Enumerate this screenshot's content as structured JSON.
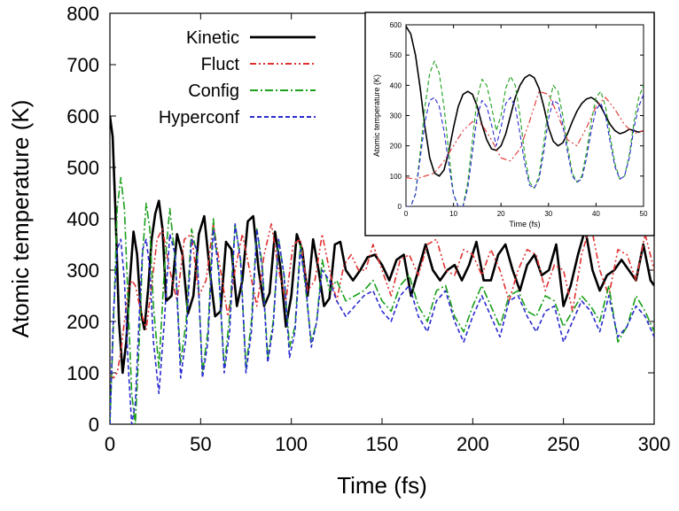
{
  "chart_data": [
    {
      "type": "line",
      "title": "",
      "xlabel": "Time (fs)",
      "ylabel": "Atomic temperature (K)",
      "xlim": [
        0,
        300
      ],
      "ylim": [
        0,
        800
      ],
      "xticks": [
        "0",
        "50",
        "100",
        "150",
        "200",
        "250",
        "300"
      ],
      "yticks": [
        "0",
        "100",
        "200",
        "300",
        "400",
        "500",
        "600",
        "700",
        "800"
      ],
      "grid": false,
      "legend_position": "top-center",
      "series": [
        {
          "name": "Kinetic",
          "color": "#000000",
          "style": "solid",
          "x": [
            0,
            1.5,
            3,
            5,
            7,
            9,
            11,
            13,
            15,
            17,
            19,
            21,
            23,
            25,
            27,
            29,
            31,
            34,
            37,
            40,
            43,
            46,
            49,
            52,
            55,
            58,
            61,
            64,
            67,
            70,
            73,
            76,
            79,
            82,
            85,
            88,
            91,
            94,
            97,
            100,
            103,
            106,
            109,
            112,
            115,
            118,
            121,
            124,
            127,
            130,
            134,
            138,
            142,
            146,
            150,
            154,
            158,
            162,
            166,
            170,
            174,
            178,
            182,
            186,
            190,
            194,
            198,
            202,
            206,
            210,
            214,
            218,
            222,
            226,
            230,
            234,
            238,
            242,
            246,
            250,
            254,
            258,
            262,
            266,
            270,
            274,
            278,
            282,
            286,
            290,
            294,
            298,
            300
          ],
          "y": [
            600,
            560,
            420,
            200,
            100,
            160,
            280,
            375,
            330,
            220,
            185,
            260,
            360,
            410,
            435,
            380,
            240,
            250,
            370,
            330,
            215,
            250,
            370,
            405,
            300,
            210,
            220,
            355,
            340,
            230,
            280,
            395,
            405,
            300,
            230,
            255,
            375,
            305,
            190,
            250,
            370,
            340,
            250,
            360,
            300,
            230,
            245,
            350,
            355,
            300,
            280,
            300,
            325,
            330,
            310,
            280,
            320,
            330,
            250,
            300,
            350,
            300,
            280,
            300,
            310,
            280,
            310,
            355,
            280,
            280,
            330,
            350,
            300,
            260,
            310,
            330,
            290,
            300,
            350,
            230,
            270,
            330,
            380,
            300,
            260,
            290,
            300,
            320,
            300,
            280,
            350,
            280,
            270
          ]
        },
        {
          "name": "Fluct",
          "color": "#e03030",
          "style": "dash-dot-dot",
          "x": [
            0,
            2,
            4,
            6,
            8,
            10,
            12,
            14,
            17,
            20,
            23,
            26,
            29,
            33,
            37,
            41,
            45,
            49,
            53,
            57,
            61,
            65,
            69,
            73,
            77,
            81,
            85,
            89,
            93,
            97,
            101,
            105,
            109,
            113,
            117,
            121,
            125,
            129,
            133,
            137,
            141,
            145,
            150,
            155,
            160,
            165,
            170,
            175,
            180,
            185,
            190,
            195,
            200,
            205,
            210,
            215,
            220,
            225,
            230,
            235,
            240,
            245,
            250,
            255,
            260,
            265,
            270,
            275,
            280,
            285,
            290,
            295,
            300
          ],
          "y": [
            95,
            90,
            100,
            140,
            200,
            260,
            280,
            270,
            220,
            185,
            270,
            360,
            380,
            300,
            240,
            360,
            370,
            250,
            280,
            390,
            300,
            210,
            300,
            370,
            300,
            230,
            330,
            390,
            300,
            240,
            350,
            360,
            260,
            280,
            370,
            300,
            240,
            310,
            330,
            300,
            300,
            350,
            300,
            250,
            320,
            330,
            290,
            350,
            360,
            300,
            290,
            340,
            330,
            290,
            340,
            300,
            240,
            300,
            340,
            330,
            260,
            310,
            300,
            220,
            330,
            390,
            300,
            250,
            340,
            330,
            280,
            370,
            300
          ]
        },
        {
          "name": "Config",
          "color": "#1aa01a",
          "style": "dash-dot",
          "x": [
            0,
            2,
            4,
            6,
            8,
            10,
            12,
            14,
            16,
            18,
            20,
            22,
            24,
            27,
            30,
            33,
            36,
            39,
            42,
            45,
            48,
            51,
            54,
            57,
            60,
            63,
            66,
            69,
            72,
            75,
            78,
            81,
            84,
            87,
            90,
            93,
            96,
            99,
            102,
            105,
            108,
            111,
            114,
            117,
            121,
            125,
            130,
            135,
            140,
            145,
            150,
            155,
            160,
            165,
            170,
            175,
            180,
            185,
            190,
            195,
            200,
            205,
            210,
            215,
            220,
            225,
            230,
            235,
            240,
            245,
            250,
            255,
            260,
            265,
            270,
            275,
            280,
            285,
            290,
            295,
            300
          ],
          "y": [
            0,
            200,
            420,
            480,
            420,
            240,
            60,
            0,
            150,
            330,
            430,
            380,
            230,
            110,
            300,
            420,
            320,
            120,
            200,
            380,
            330,
            100,
            180,
            400,
            290,
            110,
            210,
            390,
            320,
            110,
            200,
            380,
            310,
            130,
            200,
            360,
            290,
            150,
            190,
            350,
            260,
            160,
            200,
            320,
            260,
            280,
            240,
            250,
            260,
            280,
            240,
            220,
            270,
            290,
            230,
            200,
            260,
            270,
            210,
            180,
            230,
            270,
            230,
            190,
            250,
            260,
            220,
            210,
            250,
            240,
            190,
            220,
            250,
            230,
            200,
            270,
            160,
            190,
            250,
            220,
            180
          ]
        },
        {
          "name": "Hyperconf",
          "color": "#2a2ad0",
          "style": "dash",
          "x": [
            0,
            2,
            4,
            6,
            8,
            10,
            12,
            14,
            16,
            18,
            20,
            22,
            24,
            27,
            30,
            33,
            36,
            39,
            42,
            45,
            48,
            51,
            54,
            57,
            60,
            63,
            66,
            69,
            72,
            75,
            78,
            81,
            84,
            87,
            90,
            93,
            96,
            99,
            102,
            105,
            108,
            111,
            114,
            117,
            121,
            125,
            130,
            135,
            140,
            145,
            150,
            155,
            160,
            165,
            170,
            175,
            180,
            185,
            190,
            195,
            200,
            205,
            210,
            215,
            220,
            225,
            230,
            235,
            240,
            245,
            250,
            255,
            260,
            265,
            270,
            275,
            280,
            285,
            290,
            295,
            300
          ],
          "y": [
            0,
            220,
            340,
            360,
            280,
            120,
            0,
            40,
            200,
            340,
            360,
            300,
            160,
            60,
            200,
            370,
            330,
            90,
            170,
            360,
            340,
            90,
            160,
            380,
            300,
            100,
            180,
            390,
            320,
            100,
            180,
            380,
            300,
            120,
            190,
            360,
            290,
            130,
            180,
            340,
            270,
            150,
            200,
            300,
            280,
            240,
            210,
            230,
            250,
            260,
            220,
            200,
            250,
            270,
            210,
            180,
            240,
            260,
            200,
            160,
            210,
            250,
            210,
            170,
            240,
            250,
            210,
            180,
            220,
            230,
            160,
            200,
            240,
            220,
            180,
            250,
            170,
            190,
            230,
            210,
            170
          ]
        }
      ]
    },
    {
      "type": "line",
      "title": "",
      "xlabel": "Time (fs)",
      "ylabel": "Atomic temperature (K)",
      "xlim": [
        0,
        50
      ],
      "ylim": [
        0,
        600
      ],
      "xticks": [
        "0",
        "10",
        "20",
        "30",
        "40",
        "50"
      ],
      "yticks": [
        "0",
        "100",
        "200",
        "300",
        "400",
        "500",
        "600"
      ],
      "grid": false,
      "series": [
        {
          "color": "#000000",
          "style": "solid",
          "x": [
            0,
            1,
            2,
            3,
            4,
            5,
            6,
            7,
            8,
            9,
            10,
            11,
            12,
            13,
            14,
            15,
            16,
            17,
            18,
            19,
            20,
            21,
            22,
            23,
            24,
            25,
            26,
            27,
            28,
            29,
            30,
            31,
            32,
            33,
            34,
            35,
            36,
            37,
            38,
            39,
            40,
            41,
            42,
            43,
            44,
            45,
            46,
            47,
            48,
            49,
            50
          ],
          "y": [
            595,
            570,
            500,
            390,
            260,
            160,
            110,
            100,
            120,
            180,
            260,
            330,
            370,
            380,
            370,
            330,
            270,
            220,
            190,
            185,
            200,
            240,
            300,
            360,
            400,
            425,
            435,
            425,
            390,
            330,
            260,
            215,
            200,
            210,
            240,
            280,
            315,
            340,
            355,
            360,
            350,
            330,
            300,
            270,
            250,
            240,
            245,
            255,
            250,
            245,
            250
          ]
        },
        {
          "color": "#e03030",
          "style": "dash-dot-dot",
          "x": [
            0,
            2,
            4,
            6,
            8,
            10,
            12,
            14,
            16,
            18,
            20,
            22,
            24,
            26,
            28,
            30,
            32,
            34,
            36,
            38,
            40,
            42,
            44,
            46,
            48,
            50
          ],
          "y": [
            95,
            90,
            100,
            110,
            150,
            200,
            250,
            280,
            270,
            220,
            160,
            150,
            190,
            280,
            380,
            370,
            300,
            220,
            200,
            260,
            330,
            360,
            320,
            270,
            240,
            250
          ]
        },
        {
          "color": "#1aa01a",
          "style": "dash",
          "x": [
            0,
            1,
            2,
            3,
            4,
            5,
            6,
            7,
            8,
            9,
            10,
            11,
            12,
            13,
            14,
            15,
            16,
            17,
            18,
            19,
            20,
            21,
            22,
            23,
            24,
            25,
            26,
            27,
            28,
            29,
            30,
            31,
            32,
            33,
            34,
            35,
            36,
            37,
            38,
            39,
            40,
            41,
            42,
            43,
            44,
            45,
            46,
            47,
            48,
            49,
            50
          ],
          "y": [
            0,
            0,
            40,
            180,
            330,
            440,
            480,
            440,
            330,
            180,
            40,
            0,
            0,
            80,
            220,
            360,
            420,
            400,
            330,
            250,
            300,
            390,
            430,
            400,
            300,
            170,
            80,
            60,
            100,
            210,
            330,
            400,
            380,
            300,
            200,
            110,
            80,
            100,
            180,
            280,
            360,
            380,
            330,
            230,
            140,
            90,
            100,
            170,
            280,
            360,
            400
          ]
        },
        {
          "color": "#2a2ad0",
          "style": "dash",
          "x": [
            0,
            1,
            2,
            3,
            4,
            5,
            6,
            7,
            8,
            9,
            10,
            11,
            12,
            13,
            14,
            15,
            16,
            17,
            18,
            19,
            20,
            21,
            22,
            23,
            24,
            25,
            26,
            27,
            28,
            29,
            30,
            31,
            32,
            33,
            34,
            35,
            36,
            37,
            38,
            39,
            40,
            41,
            42,
            43,
            44,
            45,
            46,
            47,
            48,
            49,
            50
          ],
          "y": [
            0,
            0,
            40,
            160,
            280,
            350,
            360,
            330,
            250,
            140,
            40,
            0,
            0,
            60,
            180,
            300,
            350,
            330,
            270,
            200,
            260,
            340,
            360,
            330,
            240,
            140,
            70,
            60,
            90,
            180,
            290,
            350,
            340,
            270,
            180,
            100,
            80,
            90,
            160,
            250,
            320,
            340,
            300,
            210,
            130,
            90,
            100,
            160,
            260,
            330,
            370
          ]
        }
      ]
    }
  ]
}
